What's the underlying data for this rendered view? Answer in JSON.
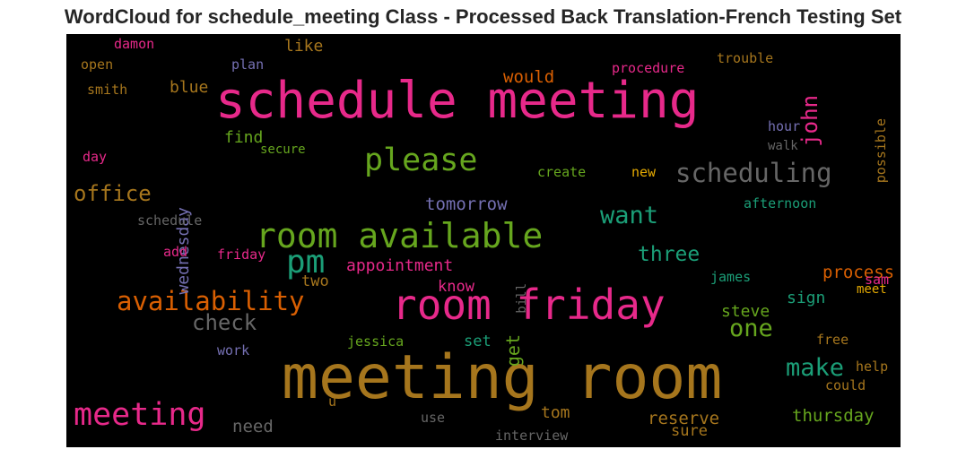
{
  "chart_data": {
    "type": "wordcloud",
    "title": "WordCloud for schedule_meeting Class - Processed Back Translation-French Testing Set",
    "background_color": "#000000",
    "colormap": "Dark2",
    "words": [
      {
        "text": "meeting room",
        "color": "#a6761d"
      },
      {
        "text": "schedule meeting",
        "color": "#e7298a"
      },
      {
        "text": "room friday",
        "color": "#e7298a"
      },
      {
        "text": "room available",
        "color": "#66a61e"
      },
      {
        "text": "meeting",
        "color": "#e7298a"
      },
      {
        "text": "please",
        "color": "#66a61e"
      },
      {
        "text": "scheduling",
        "color": "#666666"
      },
      {
        "text": "availability",
        "color": "#d95f02"
      },
      {
        "text": "pm",
        "color": "#1b9e77"
      },
      {
        "text": "make",
        "color": "#1b9e77"
      },
      {
        "text": "office",
        "color": "#a6761d"
      },
      {
        "text": "check",
        "color": "#666666"
      },
      {
        "text": "want",
        "color": "#1b9e77"
      },
      {
        "text": "john",
        "color": "#e7298a"
      },
      {
        "text": "one",
        "color": "#66a61e"
      },
      {
        "text": "three",
        "color": "#1b9e77"
      },
      {
        "text": "thursday",
        "color": "#66a61e"
      },
      {
        "text": "tomorrow",
        "color": "#7570b3"
      },
      {
        "text": "appointment",
        "color": "#e7298a"
      },
      {
        "text": "process",
        "color": "#d95f02"
      },
      {
        "text": "reserve",
        "color": "#a6761d"
      },
      {
        "text": "wednesday",
        "color": "#7570b3"
      },
      {
        "text": "get",
        "color": "#66a61e"
      },
      {
        "text": "tom",
        "color": "#a6761d"
      },
      {
        "text": "would",
        "color": "#d95f02"
      },
      {
        "text": "need",
        "color": "#666666"
      },
      {
        "text": "blue",
        "color": "#a6761d"
      },
      {
        "text": "like",
        "color": "#a6761d"
      },
      {
        "text": "find",
        "color": "#66a61e"
      },
      {
        "text": "steve",
        "color": "#66a61e"
      },
      {
        "text": "sign",
        "color": "#1b9e77"
      },
      {
        "text": "know",
        "color": "#e7298a"
      },
      {
        "text": "two",
        "color": "#a6761d"
      },
      {
        "text": "set",
        "color": "#1b9e77"
      },
      {
        "text": "sure",
        "color": "#a6761d"
      },
      {
        "text": "procedure",
        "color": "#e7298a"
      },
      {
        "text": "possible",
        "color": "#a6761d"
      },
      {
        "text": "trouble",
        "color": "#a6761d"
      },
      {
        "text": "hour",
        "color": "#7570b3"
      },
      {
        "text": "walk",
        "color": "#666666"
      },
      {
        "text": "new",
        "color": "#e6ab02"
      },
      {
        "text": "create",
        "color": "#66a61e"
      },
      {
        "text": "afternoon",
        "color": "#1b9e77"
      },
      {
        "text": "secure",
        "color": "#66a61e"
      },
      {
        "text": "schedule",
        "color": "#666666"
      },
      {
        "text": "day",
        "color": "#e7298a"
      },
      {
        "text": "smith",
        "color": "#a6761d"
      },
      {
        "text": "open",
        "color": "#a6761d"
      },
      {
        "text": "damon",
        "color": "#e7298a"
      },
      {
        "text": "plan",
        "color": "#7570b3"
      },
      {
        "text": "add",
        "color": "#e7298a"
      },
      {
        "text": "friday",
        "color": "#e7298a"
      },
      {
        "text": "bill",
        "color": "#666666"
      },
      {
        "text": "james",
        "color": "#1b9e77"
      },
      {
        "text": "sam",
        "color": "#e7298a"
      },
      {
        "text": "meet",
        "color": "#e6ab02"
      },
      {
        "text": "free",
        "color": "#a6761d"
      },
      {
        "text": "help",
        "color": "#a6761d"
      },
      {
        "text": "could",
        "color": "#a6761d"
      },
      {
        "text": "jessica",
        "color": "#66a61e"
      },
      {
        "text": "work",
        "color": "#7570b3"
      },
      {
        "text": "u",
        "color": "#a6761d"
      },
      {
        "text": "use",
        "color": "#666666"
      },
      {
        "text": "interview",
        "color": "#666666"
      }
    ]
  }
}
